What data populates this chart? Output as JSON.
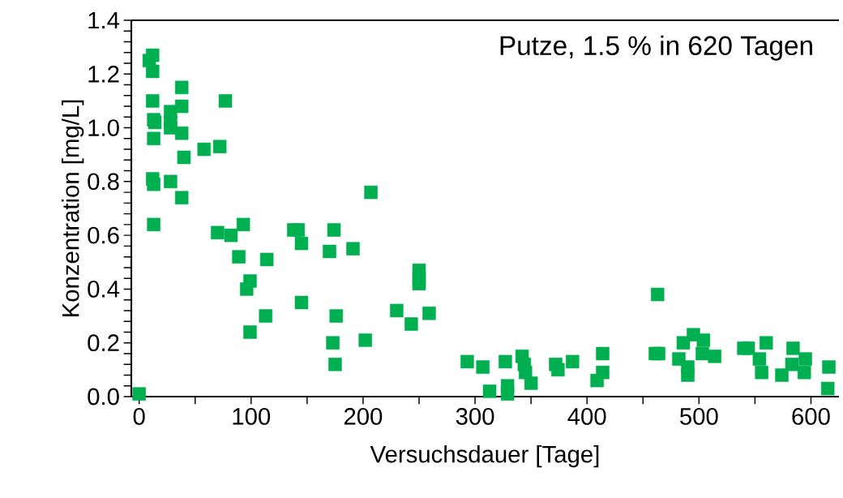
{
  "chart_data": {
    "type": "scatter",
    "xlabel": "Versuchsdauer [Tage]",
    "ylabel": "Konzentration [mg/L]",
    "annotations": [
      "Putze, 1.5 % in 620 Tagen"
    ],
    "marker": "square",
    "grid": false,
    "xlim": [
      -7,
      625
    ],
    "ylim": [
      0,
      1.4
    ],
    "xticks": [
      0,
      {
        "value": 50,
        "label": null
      },
      100,
      {
        "value": 150,
        "label": null
      },
      200,
      {
        "value": 250,
        "label": null
      },
      300,
      {
        "value": 350,
        "label": null
      },
      400,
      {
        "value": 450,
        "label": null
      },
      500,
      {
        "value": 550,
        "label": null
      },
      600
    ],
    "yticks": [
      {
        "value": 0,
        "label": "0.0"
      },
      {
        "value": 0.04,
        "label": null
      },
      {
        "value": 0.08,
        "label": null
      },
      {
        "value": 0.12,
        "label": null
      },
      {
        "value": 0.16,
        "label": null
      },
      0.2,
      {
        "value": 0.24,
        "label": null
      },
      {
        "value": 0.28,
        "label": null
      },
      {
        "value": 0.32,
        "label": null
      },
      {
        "value": 0.36,
        "label": null
      },
      0.4,
      {
        "value": 0.44,
        "label": null
      },
      {
        "value": 0.48,
        "label": null
      },
      {
        "value": 0.52,
        "label": null
      },
      {
        "value": 0.56,
        "label": null
      },
      0.6,
      {
        "value": 0.64,
        "label": null
      },
      {
        "value": 0.68,
        "label": null
      },
      {
        "value": 0.72,
        "label": null
      },
      {
        "value": 0.76,
        "label": null
      },
      0.8,
      {
        "value": 0.84,
        "label": null
      },
      {
        "value": 0.88,
        "label": null
      },
      {
        "value": 0.92,
        "label": null
      },
      {
        "value": 0.96,
        "label": null
      },
      {
        "value": 1,
        "label": "1.0"
      },
      {
        "value": 1.04,
        "label": null
      },
      {
        "value": 1.08,
        "label": null
      },
      {
        "value": 1.12,
        "label": null
      },
      {
        "value": 1.16,
        "label": null
      },
      1.2,
      {
        "value": 1.24,
        "label": null
      },
      {
        "value": 1.28,
        "label": null
      },
      {
        "value": 1.32,
        "label": null
      },
      {
        "value": 1.36,
        "label": null
      },
      1.4
    ],
    "series": [
      {
        "color": "#00b050",
        "x": [
          0,
          9,
          12,
          12,
          12,
          13,
          14,
          13,
          12,
          13,
          13,
          28,
          28,
          28,
          28,
          38,
          38,
          38,
          40,
          38,
          58,
          72,
          77,
          70,
          82,
          93,
          138,
          142,
          174,
          145,
          170,
          191,
          89,
          114,
          99,
          96,
          250,
          250,
          250,
          145,
          230,
          259,
          113,
          176,
          243,
          99,
          202,
          173,
          175,
          207,
          293,
          307,
          313,
          327,
          329,
          329,
          342,
          344,
          345,
          350,
          372,
          374,
          387,
          414,
          414,
          409,
          463,
          461,
          464,
          486,
          495,
          504,
          503,
          514,
          482,
          490,
          490,
          540,
          544,
          560,
          554,
          556,
          574,
          584,
          583,
          595,
          594,
          616,
          615
        ],
        "values": [
          0.01,
          1.25,
          1.27,
          1.21,
          1.1,
          1.03,
          1.02,
          0.96,
          0.81,
          0.79,
          0.64,
          1.06,
          1.02,
          1.0,
          0.8,
          1.15,
          1.08,
          0.98,
          0.89,
          0.74,
          0.92,
          0.93,
          1.1,
          0.61,
          0.6,
          0.64,
          0.62,
          0.62,
          0.62,
          0.57,
          0.54,
          0.55,
          0.52,
          0.51,
          0.43,
          0.4,
          0.47,
          0.44,
          0.42,
          0.35,
          0.32,
          0.31,
          0.3,
          0.3,
          0.27,
          0.24,
          0.21,
          0.2,
          0.12,
          0.76,
          0.13,
          0.11,
          0.02,
          0.13,
          0.04,
          0.01,
          0.15,
          0.12,
          0.09,
          0.05,
          0.12,
          0.1,
          0.13,
          0.16,
          0.09,
          0.06,
          0.38,
          0.16,
          0.16,
          0.2,
          0.23,
          0.21,
          0.16,
          0.15,
          0.14,
          0.11,
          0.08,
          0.18,
          0.18,
          0.2,
          0.14,
          0.09,
          0.08,
          0.18,
          0.12,
          0.14,
          0.09,
          0.11,
          0.03
        ]
      }
    ]
  }
}
